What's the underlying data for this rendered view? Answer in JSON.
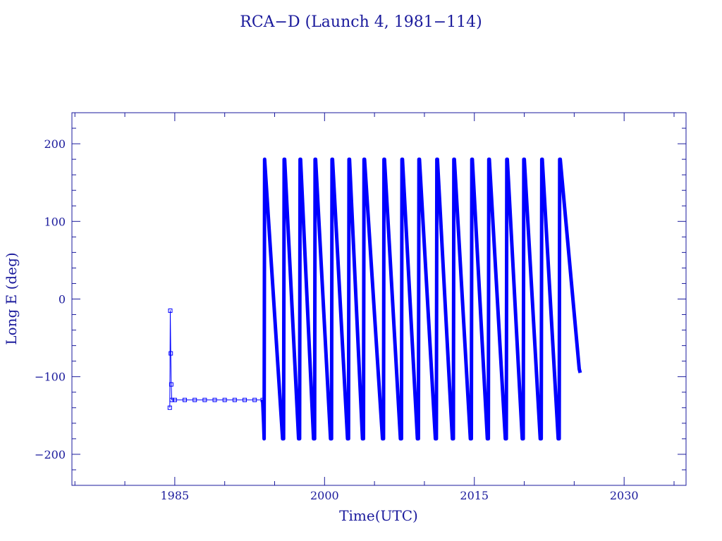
{
  "chart_data": {
    "type": "line",
    "title": "RCA−D (Launch 4, 1981−114)",
    "xlabel": "Time(UTC)",
    "ylabel": "Long E (deg)",
    "xlim": [
      1974.7,
      2036.2
    ],
    "ylim": [
      -240,
      240
    ],
    "x_ticks": [
      1985,
      2000,
      2015,
      2030
    ],
    "x_tick_labels": [
      "1985",
      "2000",
      "2015",
      "2030"
    ],
    "y_ticks": [
      -200,
      -100,
      0,
      100,
      200
    ],
    "y_tick_labels": [
      "−200",
      "−100",
      "0",
      "100",
      "200"
    ],
    "grid": false,
    "colors": {
      "line": "#0000ff",
      "frame": "#1a1a9c",
      "text": "#1a1a9c"
    },
    "series": [
      {
        "marker": "square",
        "x": [
          1984.5,
          1984.55,
          1984.6,
          1984.65,
          1984.7,
          1985,
          1986,
          1987,
          1988,
          1989,
          1990,
          1991,
          1992,
          1993,
          1993.8
        ],
        "y": [
          -140,
          -15,
          -70,
          -110,
          -130,
          -130,
          -130,
          -130,
          -130,
          -130,
          -130,
          -130,
          -130,
          -130,
          -130
        ]
      },
      {
        "x": [
          1993.8,
          1993.9,
          1993.95,
          1994.0,
          1995.8,
          1995.9,
          1995.95,
          1996.0,
          1997.4,
          1997.5,
          1997.55,
          1997.6,
          1998.9,
          1999.0,
          1999.05,
          1999.1,
          2000.6,
          2000.7,
          2000.75,
          2000.8,
          2002.3,
          2002.4,
          2002.45,
          2002.5,
          2003.8,
          2003.9,
          2003.95,
          2004.0,
          2005.8,
          2005.9,
          2005.95,
          2006.0,
          2007.6,
          2007.7,
          2007.75,
          2007.8,
          2009.3,
          2009.4,
          2009.45,
          2009.5,
          2011.1,
          2011.2,
          2011.25,
          2011.3,
          2012.8,
          2012.9,
          2012.95,
          2013.0,
          2014.6,
          2014.7,
          2014.75,
          2014.8,
          2016.3,
          2016.4,
          2016.45,
          2016.5,
          2018.1,
          2018.2,
          2018.25,
          2018.3,
          2019.8,
          2019.9,
          2019.95,
          2020.0,
          2021.6,
          2021.7,
          2021.75,
          2021.8,
          2023.4,
          2023.5,
          2023.55,
          2023.6,
          2025.5,
          2025.6
        ],
        "y": [
          -130,
          -160,
          -180,
          180,
          -180,
          -180,
          180,
          180,
          -180,
          -180,
          180,
          180,
          -180,
          -180,
          180,
          180,
          -180,
          -180,
          180,
          180,
          -180,
          -180,
          180,
          180,
          -180,
          -180,
          180,
          180,
          -180,
          -180,
          180,
          180,
          -180,
          -180,
          180,
          180,
          -180,
          -180,
          180,
          180,
          -180,
          -180,
          180,
          180,
          -180,
          -180,
          180,
          180,
          -180,
          -180,
          180,
          180,
          -180,
          -180,
          180,
          180,
          -180,
          -180,
          180,
          180,
          -180,
          -180,
          180,
          180,
          -180,
          -180,
          180,
          180,
          -180,
          -180,
          180,
          180,
          -90,
          -95
        ]
      }
    ]
  }
}
